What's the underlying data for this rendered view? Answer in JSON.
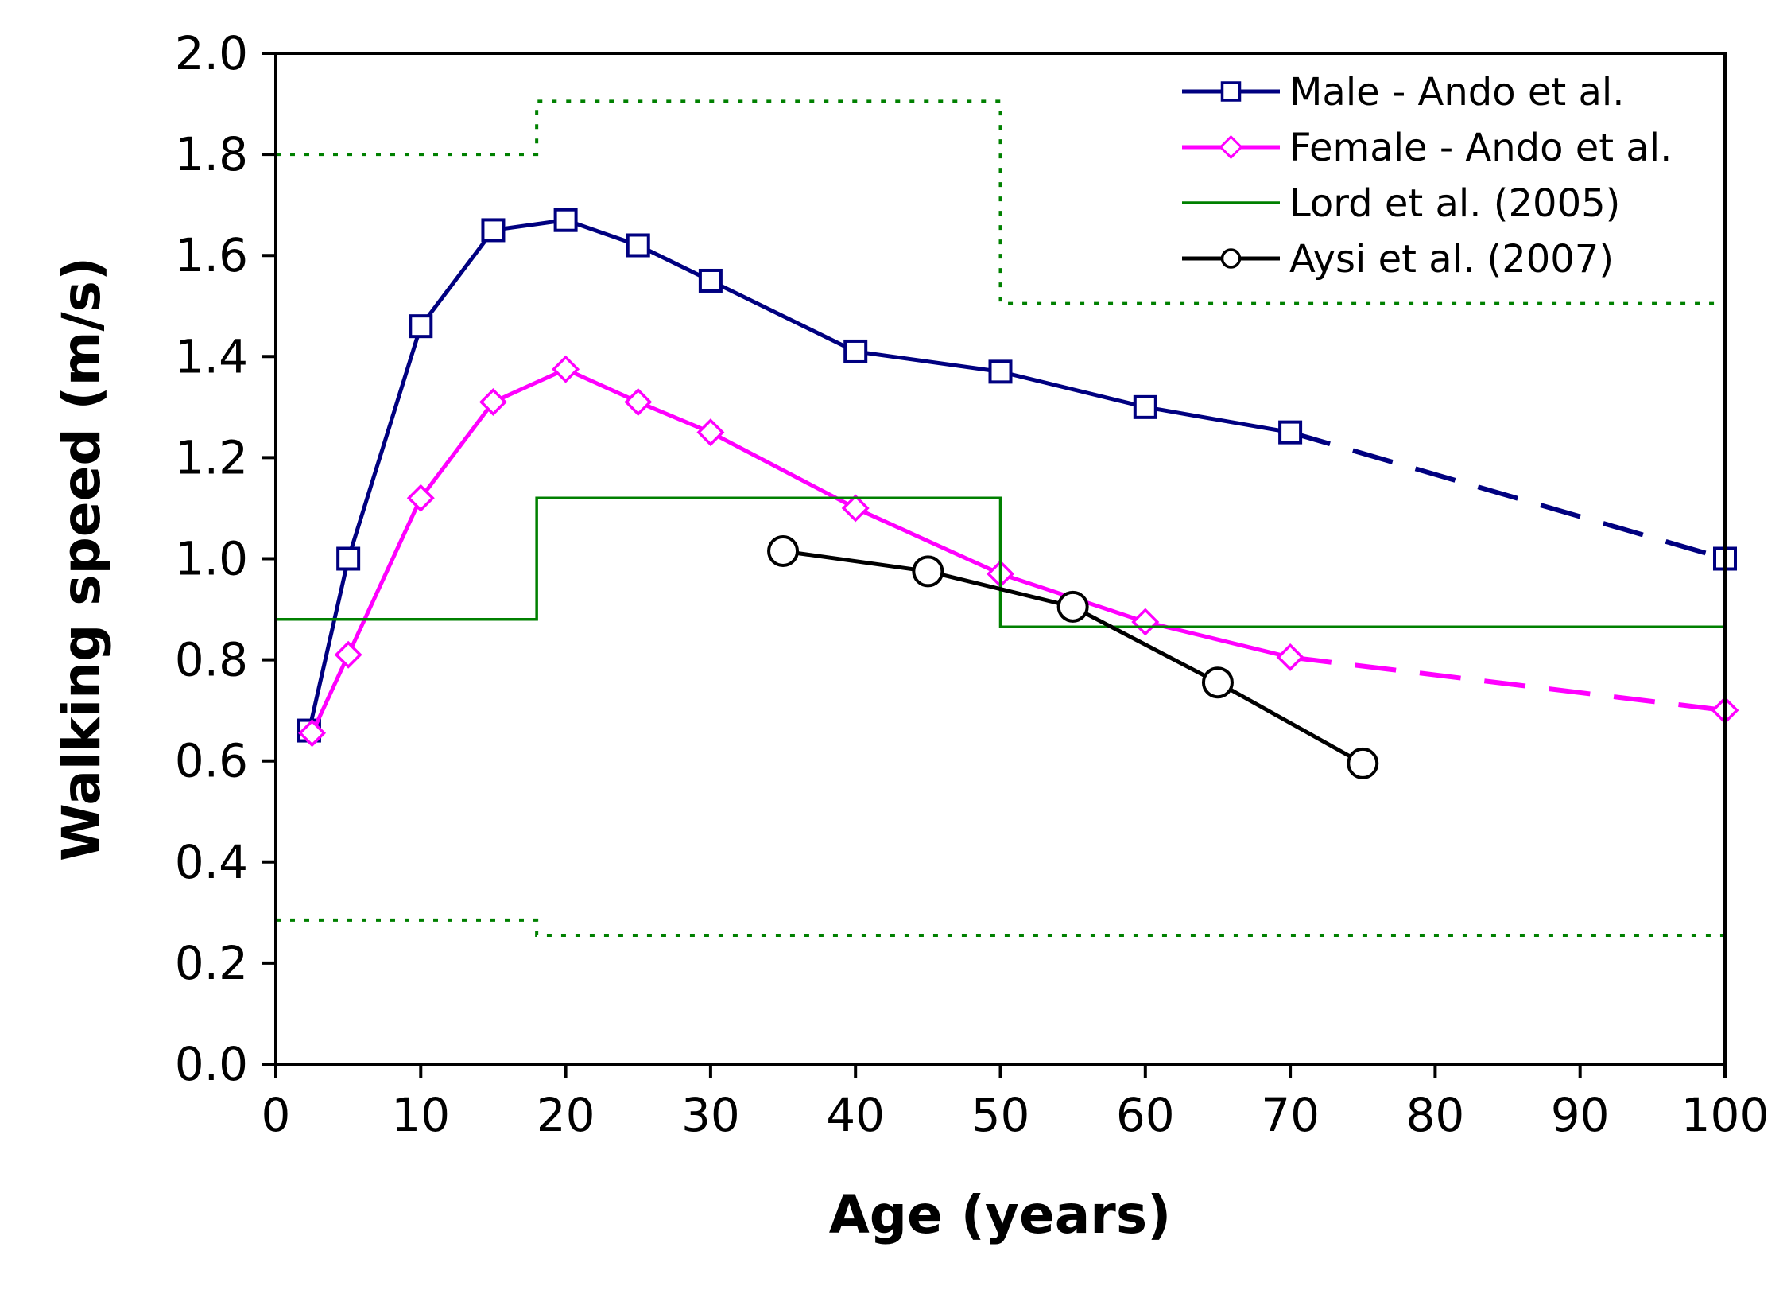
{
  "chart_data": {
    "type": "line",
    "xlabel": "Age (years)",
    "ylabel": "Walking speed (m/s)",
    "xlim": [
      0,
      100
    ],
    "ylim": [
      0,
      2.0
    ],
    "x_ticks": [
      "0",
      "10",
      "20",
      "30",
      "40",
      "50",
      "60",
      "70",
      "80",
      "90",
      "100"
    ],
    "y_ticks": [
      "0.0",
      "0.2",
      "0.4",
      "0.6",
      "0.8",
      "1.0",
      "1.2",
      "1.4",
      "1.6",
      "1.8",
      "2.0"
    ],
    "grid": false,
    "legend_position": "top-right",
    "series": [
      {
        "name": "Male - Ando et al.",
        "color": "#000080",
        "marker": "square",
        "x": [
          2.3,
          5,
          10,
          15,
          20,
          25,
          30,
          40,
          50,
          60,
          70,
          100
        ],
        "y": [
          0.66,
          1.0,
          1.46,
          1.65,
          1.67,
          1.62,
          1.55,
          1.41,
          1.37,
          1.3,
          1.25,
          1.0
        ],
        "dashed_after_x": 70
      },
      {
        "name": "Female - Ando et al.",
        "color": "#ff00ff",
        "marker": "diamond",
        "x": [
          2.5,
          5,
          10,
          15,
          20,
          25,
          30,
          40,
          50,
          60,
          70,
          100
        ],
        "y": [
          0.655,
          0.81,
          1.12,
          1.31,
          1.375,
          1.31,
          1.25,
          1.1,
          0.97,
          0.875,
          0.805,
          0.7
        ],
        "dashed_after_x": 70
      },
      {
        "name": "Lord et al. (2005)",
        "color": "#008000",
        "style": "step",
        "x": [
          0,
          18,
          18,
          50,
          50,
          100
        ],
        "y": [
          0.88,
          0.88,
          1.12,
          1.12,
          0.865,
          0.865
        ],
        "bounds_upper": {
          "x": [
            0,
            18,
            18,
            50,
            50,
            100
          ],
          "y": [
            1.8,
            1.8,
            1.905,
            1.905,
            1.505,
            1.505
          ]
        },
        "bounds_lower": {
          "x": [
            0,
            18,
            18,
            100
          ],
          "y": [
            0.285,
            0.285,
            0.255,
            0.255
          ]
        }
      },
      {
        "name": "Aysi et al. (2007)",
        "color": "#000000",
        "marker": "circle",
        "x": [
          35,
          45,
          55,
          65,
          75
        ],
        "y": [
          1.015,
          0.975,
          0.905,
          0.755,
          0.595
        ]
      }
    ]
  }
}
